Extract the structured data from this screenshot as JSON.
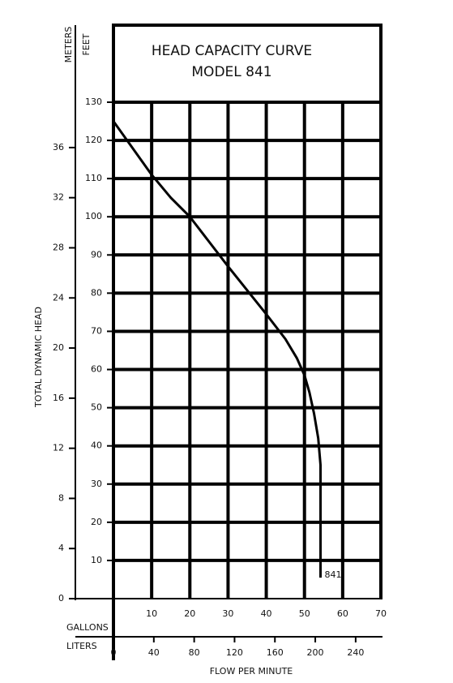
{
  "chart_data": {
    "type": "line",
    "title": "HEAD CAPACITY CURVE",
    "subtitle": "MODEL 841",
    "x_label": "FLOW PER MINUTE",
    "y_label": "TOTAL DYNAMIC HEAD",
    "x_unit": "GALLONS",
    "x2_unit": "LITERS",
    "y_unit": "FEET",
    "y2_unit": "METERS",
    "xlim": [
      0,
      70
    ],
    "xticks": [
      10,
      20,
      30,
      40,
      50,
      60,
      70
    ],
    "x2lim": [
      0,
      265
    ],
    "x2ticks": [
      0,
      40,
      80,
      120,
      160,
      200,
      240
    ],
    "ylim": [
      0,
      130
    ],
    "yticks": [
      10,
      20,
      30,
      40,
      50,
      60,
      70,
      80,
      90,
      100,
      110,
      120,
      130
    ],
    "y2lim": [
      0,
      39.62
    ],
    "y2ticks": [
      0,
      4,
      8,
      12,
      16,
      20,
      24,
      28,
      32,
      36
    ],
    "grid": true,
    "x": [
      0,
      10,
      15,
      20,
      30,
      40,
      45,
      48,
      50,
      51.3,
      52.5,
      53.6,
      54.2,
      54.2
    ],
    "series": [
      {
        "name": "841",
        "color": "#000000",
        "values": [
          125,
          111,
          105,
          100,
          87,
          74.5,
          68,
          63,
          58.5,
          54,
          48.5,
          42,
          35,
          5.5
        ]
      }
    ]
  }
}
